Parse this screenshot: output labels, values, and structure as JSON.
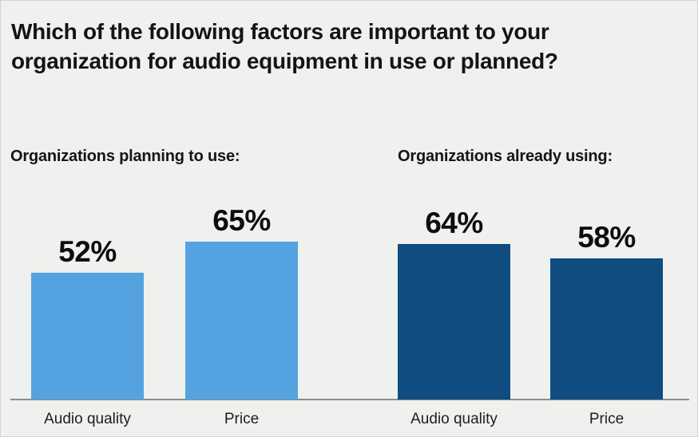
{
  "chart_data": {
    "type": "bar",
    "title": "Which of the following factors are important to your organization for audio equipment in use or planned?",
    "unit": "%",
    "ylim": [
      0,
      100
    ],
    "grid": false,
    "legend": "none",
    "groups": [
      {
        "label": "Organizations planning to use:",
        "color": "#54a3e0",
        "categories": [
          "Audio quality",
          "Price"
        ],
        "values": [
          52,
          65
        ],
        "value_labels": [
          "52%",
          "65%"
        ]
      },
      {
        "label": "Organizations already using:",
        "color": "#0f4d80",
        "categories": [
          "Audio quality",
          "Price"
        ],
        "values": [
          64,
          58
        ],
        "value_labels": [
          "64%",
          "58%"
        ]
      }
    ]
  }
}
